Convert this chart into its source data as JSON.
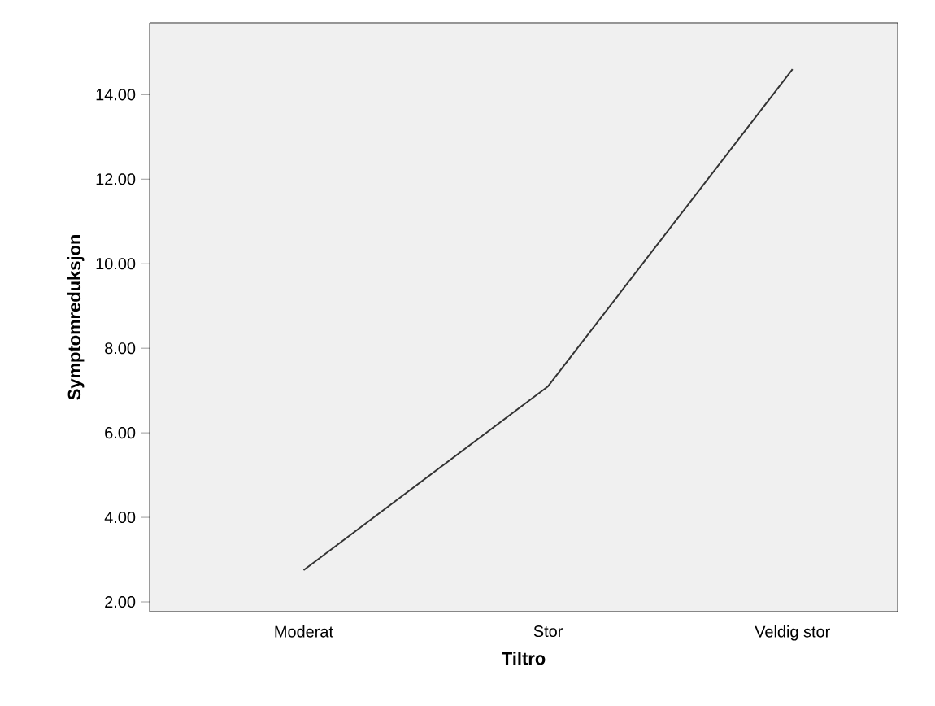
{
  "chart_data": {
    "type": "line",
    "xlabel": "Tiltro",
    "ylabel": "Symptomreduksjon",
    "categories": [
      "Moderat",
      "Stor",
      "Veldig stor"
    ],
    "series": [
      {
        "color": "#333333",
        "values": [
          2.75,
          7.1,
          14.6
        ]
      }
    ],
    "ylim": [
      1.77,
      15.7
    ],
    "yticks": [
      {
        "value": 2,
        "label": "2.00"
      },
      {
        "value": 4,
        "label": "4.00"
      },
      {
        "value": 6,
        "label": "6.00"
      },
      {
        "value": 8,
        "label": "8.00"
      },
      {
        "value": 10,
        "label": "10.00"
      },
      {
        "value": 12,
        "label": "12.00"
      },
      {
        "value": 14,
        "label": "14.00"
      }
    ],
    "grid": false,
    "marker": "none",
    "line_style": "solid"
  }
}
